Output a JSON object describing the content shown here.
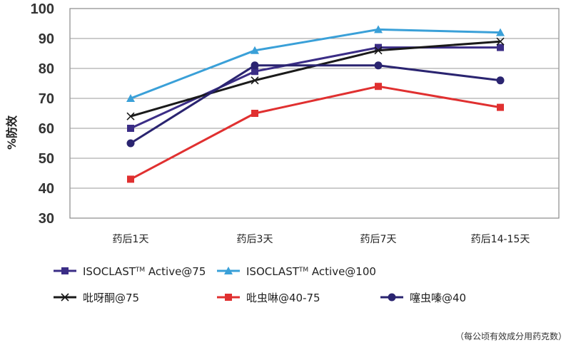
{
  "chart_data": {
    "type": "line",
    "categories": [
      "药后1天",
      "药后3天",
      "药后7天",
      "药后14-15天"
    ],
    "ylabel": "%防效",
    "ylim": [
      30,
      100
    ],
    "yticks": [
      "30",
      "40",
      "50",
      "60",
      "70",
      "80",
      "90",
      "100"
    ],
    "grid": true,
    "legend_position": "bottom",
    "series": [
      {
        "name_parts": [
          "ISOCLAST",
          "TM",
          " Active@75"
        ],
        "values": [
          60,
          79,
          87,
          87
        ],
        "color": "#3b2d86",
        "marker": "square"
      },
      {
        "name_parts": [
          "ISOCLAST",
          "TM",
          " Active@100"
        ],
        "values": [
          70,
          86,
          93,
          92
        ],
        "color": "#3aa0d8",
        "marker": "triangle"
      },
      {
        "name_parts": [
          "吡呀酮@75",
          "",
          ""
        ],
        "values": [
          64,
          76,
          86,
          89
        ],
        "color": "#1a1a1a",
        "marker": "x"
      },
      {
        "name_parts": [
          "吡虫啉@40-75",
          "",
          ""
        ],
        "values": [
          43,
          65,
          74,
          67
        ],
        "color": "#e03030",
        "marker": "square"
      },
      {
        "name_parts": [
          "噻虫嗪@40",
          "",
          ""
        ],
        "values": [
          55,
          81,
          81,
          76
        ],
        "color": "#2a2470",
        "marker": "circle"
      }
    ]
  },
  "footnote": "（每公顷有效成分用药克数）"
}
